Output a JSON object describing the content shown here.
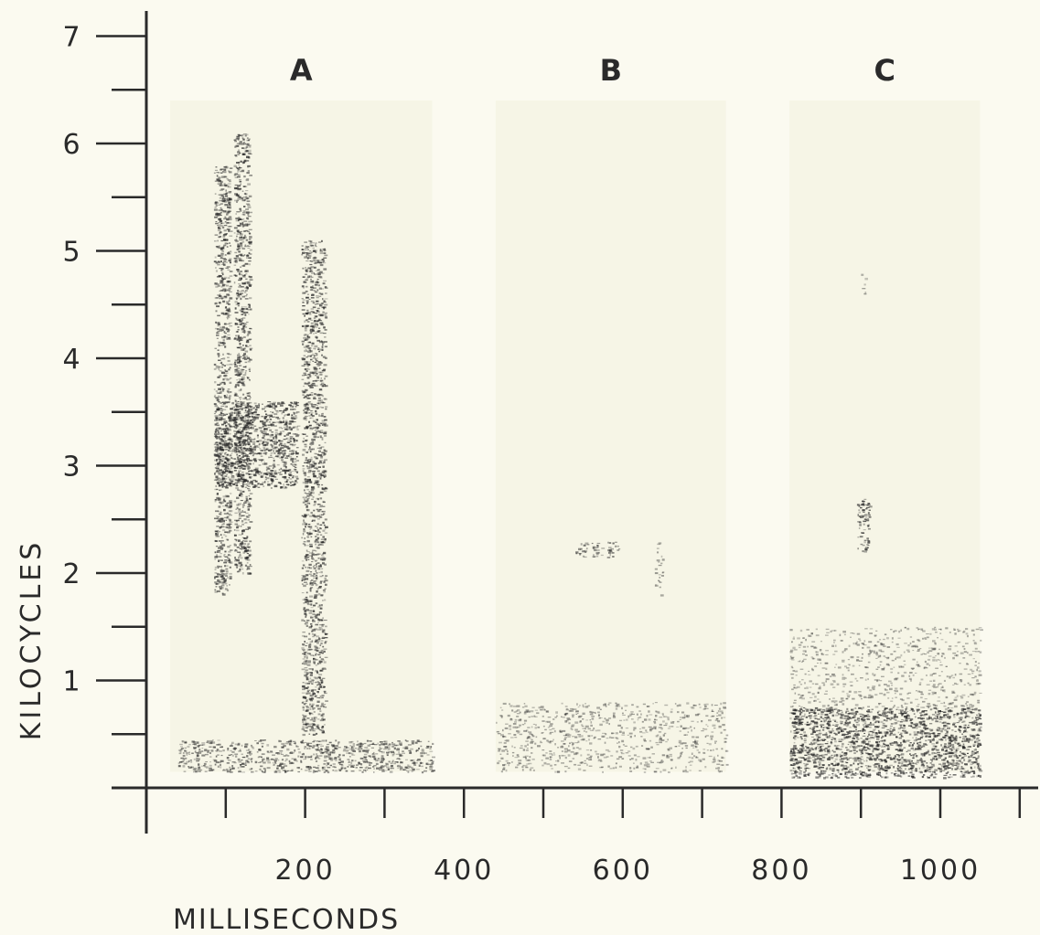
{
  "chart_data": {
    "type": "heatmap",
    "title": "",
    "xlabel": "MILLISECONDS",
    "ylabel": "KILOCYCLES",
    "xlim": [
      0,
      1100
    ],
    "ylim": [
      0,
      7
    ],
    "x_ticks": [
      200,
      400,
      600,
      800,
      1000
    ],
    "x_tick_labels": [
      "200",
      "400",
      "600",
      "800",
      "1000"
    ],
    "x_minor_tick_step": 100,
    "y_ticks": [
      1,
      2,
      3,
      4,
      5,
      6,
      7
    ],
    "y_tick_labels": [
      "1",
      "2",
      "3",
      "4",
      "5",
      "6",
      "7"
    ],
    "y_minor_tick_step": 0.5,
    "grid": false,
    "colors": {
      "background": "#fbfaf0",
      "panel": "#f6f5e6",
      "ink": "#2a2a2a"
    },
    "panels": [
      {
        "label": "A",
        "x_range": [
          30,
          360
        ],
        "y_range": [
          0.15,
          6.4
        ],
        "energy": [
          {
            "x": [
              85,
              105
            ],
            "y": [
              1.8,
              5.8
            ],
            "level": 0.85
          },
          {
            "x": [
              110,
              130
            ],
            "y": [
              2.0,
              6.1
            ],
            "level": 0.9
          },
          {
            "x": [
              85,
              190
            ],
            "y": [
              2.8,
              3.6
            ],
            "level": 0.95
          },
          {
            "x": [
              195,
              225
            ],
            "y": [
              0.5,
              5.1
            ],
            "level": 0.85
          },
          {
            "x": [
              40,
              360
            ],
            "y": [
              0.15,
              0.45
            ],
            "level": 0.7
          }
        ]
      },
      {
        "label": "B",
        "x_range": [
          440,
          730
        ],
        "y_range": [
          0.15,
          6.4
        ],
        "energy": [
          {
            "x": [
              540,
              555
            ],
            "y": [
              2.15,
              2.3
            ],
            "level": 0.7
          },
          {
            "x": [
              560,
              575
            ],
            "y": [
              2.15,
              2.3
            ],
            "level": 0.7
          },
          {
            "x": [
              580,
              595
            ],
            "y": [
              2.15,
              2.3
            ],
            "level": 0.7
          },
          {
            "x": [
              640,
              650
            ],
            "y": [
              1.8,
              2.3
            ],
            "level": 0.4
          },
          {
            "x": [
              440,
              730
            ],
            "y": [
              0.15,
              0.8
            ],
            "level": 0.35
          }
        ]
      },
      {
        "label": "C",
        "x_range": [
          810,
          1050
        ],
        "y_range": [
          0.15,
          6.4
        ],
        "energy": [
          {
            "x": [
              895,
              910
            ],
            "y": [
              2.2,
              2.7
            ],
            "level": 0.85
          },
          {
            "x": [
              900,
              905
            ],
            "y": [
              4.6,
              4.8
            ],
            "level": 0.4
          },
          {
            "x": [
              810,
              1050
            ],
            "y": [
              0.1,
              0.75
            ],
            "level": 0.95
          },
          {
            "x": [
              810,
              1050
            ],
            "y": [
              0.75,
              1.5
            ],
            "level": 0.3
          }
        ]
      }
    ]
  }
}
